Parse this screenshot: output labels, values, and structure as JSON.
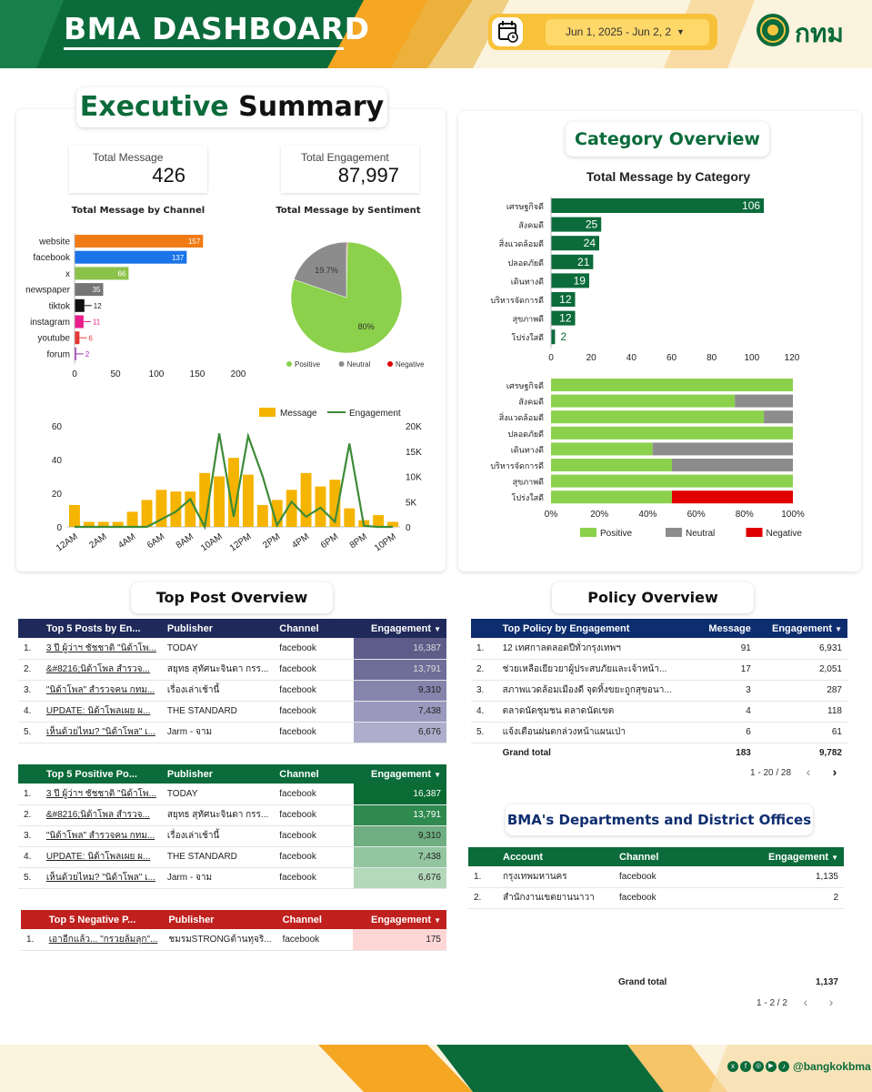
{
  "header": {
    "title": "BMA DASHBOARD",
    "date_range": "Jun 1, 2025 - Jun 2, 2",
    "logo_text": "กทม"
  },
  "executive": {
    "title_green": "Executive",
    "title_black": "Summary",
    "total_message_label": "Total Message",
    "total_message_value": "426",
    "total_engagement_label": "Total Engagement",
    "total_engagement_value": "87,997",
    "channel_chart_title": "Total Message by Channel",
    "sentiment_chart_title": "Total Message by Sentiment"
  },
  "category": {
    "title": "Category Overview",
    "chart_title": "Total Message by Category"
  },
  "top_post": {
    "title": "Top Post Overview",
    "table1": {
      "headers": [
        "Top 5 Posts by En...",
        "Publisher",
        "Channel",
        "Engagement"
      ],
      "rows": [
        {
          "n": "1.",
          "post": "3 ปี ผู้ว่าฯ ชัชชาติ \"นิด้าโพ...",
          "publisher": "TODAY",
          "channel": "facebook",
          "eng": "16,387"
        },
        {
          "n": "2.",
          "post": "&#8216;นิด้าโพล สำรวจ...",
          "publisher": "สยุทธ สุทัศนะจินดา กรร...",
          "channel": "facebook",
          "eng": "13,791"
        },
        {
          "n": "3.",
          "post": "\"นิด้าโพล\" สำรวจคน กทม...",
          "publisher": "เรื่องเล่าเช้านี้",
          "channel": "facebook",
          "eng": "9,310"
        },
        {
          "n": "4.",
          "post": "UPDATE: นิด้าโพลเผย ผ...",
          "publisher": "THE STANDARD",
          "channel": "facebook",
          "eng": "7,438"
        },
        {
          "n": "5.",
          "post": "เห็นด้วยไหม? \"นิด้าโพล\" เ...",
          "publisher": "Jarm - จาม",
          "channel": "facebook",
          "eng": "6,676"
        }
      ]
    },
    "table2": {
      "headers": [
        "Top 5 Positive Po...",
        "Publisher",
        "Channel",
        "Engagement"
      ],
      "rows": [
        {
          "n": "1.",
          "post": "3 ปี ผู้ว่าฯ ชัชชาติ \"นิด้าโพ...",
          "publisher": "TODAY",
          "channel": "facebook",
          "eng": "16,387"
        },
        {
          "n": "2.",
          "post": "&#8216;นิด้าโพล สำรวจ...",
          "publisher": "สยุทธ สุทัศนะจินดา กรร...",
          "channel": "facebook",
          "eng": "13,791"
        },
        {
          "n": "3.",
          "post": "\"นิด้าโพล\" สำรวจคน กทม...",
          "publisher": "เรื่องเล่าเช้านี้",
          "channel": "facebook",
          "eng": "9,310"
        },
        {
          "n": "4.",
          "post": "UPDATE: นิด้าโพลเผย ผ...",
          "publisher": "THE STANDARD",
          "channel": "facebook",
          "eng": "7,438"
        },
        {
          "n": "5.",
          "post": "เห็นด้วยไหม? \"นิด้าโพล\" เ...",
          "publisher": "Jarm - จาม",
          "channel": "facebook",
          "eng": "6,676"
        }
      ]
    },
    "table3": {
      "headers": [
        "Top 5 Negative P...",
        "Publisher",
        "Channel",
        "Engagement"
      ],
      "rows": [
        {
          "n": "1.",
          "post": "เอาอีกแล้ว... \"กรวยล้มลุก\"...",
          "publisher": "ชมรมSTRONGต้านทุจริ...",
          "channel": "facebook",
          "eng": "175"
        }
      ]
    }
  },
  "policy": {
    "title": "Policy Overview",
    "headers": [
      "Top Policy by Engagement",
      "Message",
      "Engagement"
    ],
    "rows": [
      {
        "n": "1.",
        "policy": "12 เทศกาลตลอดปีทั่วกรุงเทพฯ",
        "msg": "91",
        "eng": "6,931"
      },
      {
        "n": "2.",
        "policy": "ช่วยเหลือเยียวยาผู้ประสบภัยและเจ้าหน้า...",
        "msg": "17",
        "eng": "2,051"
      },
      {
        "n": "3.",
        "policy": "สภาพแวดล้อมเมืองดี จุดทิ้งขยะถูกสุขอนา...",
        "msg": "3",
        "eng": "287"
      },
      {
        "n": "4.",
        "policy": "ตลาดนัดชุมชน ตลาดนัดเขต",
        "msg": "4",
        "eng": "118"
      },
      {
        "n": "5.",
        "policy": "แจ้งเตือนฝนตกล่วงหน้าแผนเป่า",
        "msg": "6",
        "eng": "61"
      }
    ],
    "grand_total_label": "Grand total",
    "grand_total_msg": "183",
    "grand_total_eng": "9,782",
    "pager": "1 - 20 / 28"
  },
  "departments": {
    "title": "BMA's Departments and District Offices",
    "headers": [
      "Account",
      "Channel",
      "Engagement"
    ],
    "rows": [
      {
        "n": "1.",
        "account": "กรุงเทพมหานคร",
        "channel": "facebook",
        "eng": "1,135"
      },
      {
        "n": "2.",
        "account": "สำนักงานเขตยานนาวา",
        "channel": "facebook",
        "eng": "2"
      }
    ],
    "grand_total_label": "Grand total",
    "grand_total_eng": "1,137",
    "pager": "1 - 2 / 2"
  },
  "footer": {
    "handle": "@bangkokbma"
  },
  "colors": {
    "green_dark": "#0b6b3a",
    "green_light": "#8bd14b",
    "gray": "#8c8c8c",
    "red": "#e00000",
    "orange": "#f5b400",
    "navy": "#1f2a5a",
    "blue_header": "#0d2d6e"
  },
  "chart_data": [
    {
      "type": "bar",
      "title": "Total Message by Channel",
      "categories": [
        "website",
        "facebook",
        "x",
        "newspaper",
        "tiktok",
        "instagram",
        "youtube",
        "forum"
      ],
      "values": [
        157,
        137,
        66,
        35,
        12,
        11,
        6,
        2
      ],
      "colors": [
        "#f07b14",
        "#1a73e8",
        "#8bc34a",
        "#757575",
        "#111111",
        "#e91e8c",
        "#e53935",
        "#9c27b0"
      ],
      "orientation": "horizontal",
      "xticks": [
        "0",
        "50",
        "100",
        "150",
        "200"
      ],
      "xlim": [
        0,
        200
      ]
    },
    {
      "type": "pie",
      "title": "Total Message by Sentiment",
      "labels": [
        "Positive",
        "Neutral",
        "Negative"
      ],
      "values": [
        80,
        19.7,
        0.3
      ],
      "value_labels": [
        "80%",
        "19.7%",
        ""
      ],
      "colors": [
        "#8bd14b",
        "#8c8c8c",
        "#e00000"
      ]
    },
    {
      "type": "bar",
      "title": "",
      "series": [
        {
          "name": "Message",
          "values": [
            13,
            3,
            3,
            3,
            9,
            16,
            22,
            21,
            21,
            32,
            30,
            41,
            31,
            13,
            16,
            22,
            32,
            24,
            28,
            11,
            4,
            7,
            3
          ],
          "color": "#f5b400"
        },
        {
          "name": "Engagement",
          "values": [
            0,
            0,
            0,
            0,
            0,
            0,
            1500,
            3000,
            5500,
            0,
            18500,
            2000,
            18000,
            10000,
            300,
            5000,
            2000,
            3800,
            1000,
            16500,
            200,
            0,
            0
          ],
          "color": "#3d8b37"
        }
      ],
      "xticks": [
        "12AM",
        "2AM",
        "4AM",
        "6AM",
        "8AM",
        "10AM",
        "12PM",
        "2PM",
        "4PM",
        "6PM",
        "8PM",
        "10PM"
      ],
      "yticks_left": [
        "0",
        "20",
        "40",
        "60"
      ],
      "yticks_right": [
        "0",
        "5K",
        "10K",
        "15K",
        "20K"
      ],
      "ylim_left": [
        0,
        60
      ],
      "ylim_right": [
        0,
        20000
      ]
    },
    {
      "type": "bar",
      "title": "Total Message by Category",
      "categories": [
        "เศรษฐกิจดี",
        "สังคมดี",
        "สิ่งแวดล้อมดี",
        "ปลอดภัยดี",
        "เดินทางดี",
        "บริหารจัดการดี",
        "สุขภาพดี",
        "โปร่งใสดี"
      ],
      "values": [
        106,
        25,
        24,
        21,
        19,
        12,
        12,
        2
      ],
      "orientation": "horizontal",
      "xticks": [
        "0",
        "20",
        "40",
        "60",
        "80",
        "100",
        "120"
      ],
      "xlim": [
        0,
        120
      ]
    },
    {
      "type": "bar",
      "title": "",
      "stacked_percent": true,
      "categories": [
        "เศรษฐกิจดี",
        "สังคมดี",
        "สิ่งแวดล้อมดี",
        "ปลอดภัยดี",
        "เดินทางดี",
        "บริหารจัดการดี",
        "สุขภาพดี",
        "โปร่งใสดี"
      ],
      "series": [
        {
          "name": "Positive",
          "values": [
            100,
            76,
            88,
            100,
            42,
            50,
            100,
            50
          ],
          "color": "#8bd14b"
        },
        {
          "name": "Neutral",
          "values": [
            0,
            24,
            12,
            0,
            58,
            50,
            0,
            0
          ],
          "color": "#8c8c8c"
        },
        {
          "name": "Negative",
          "values": [
            0,
            0,
            0,
            0,
            0,
            0,
            0,
            50
          ],
          "color": "#e00000"
        }
      ],
      "xticks": [
        "0%",
        "20%",
        "40%",
        "60%",
        "80%",
        "100%"
      ]
    }
  ]
}
